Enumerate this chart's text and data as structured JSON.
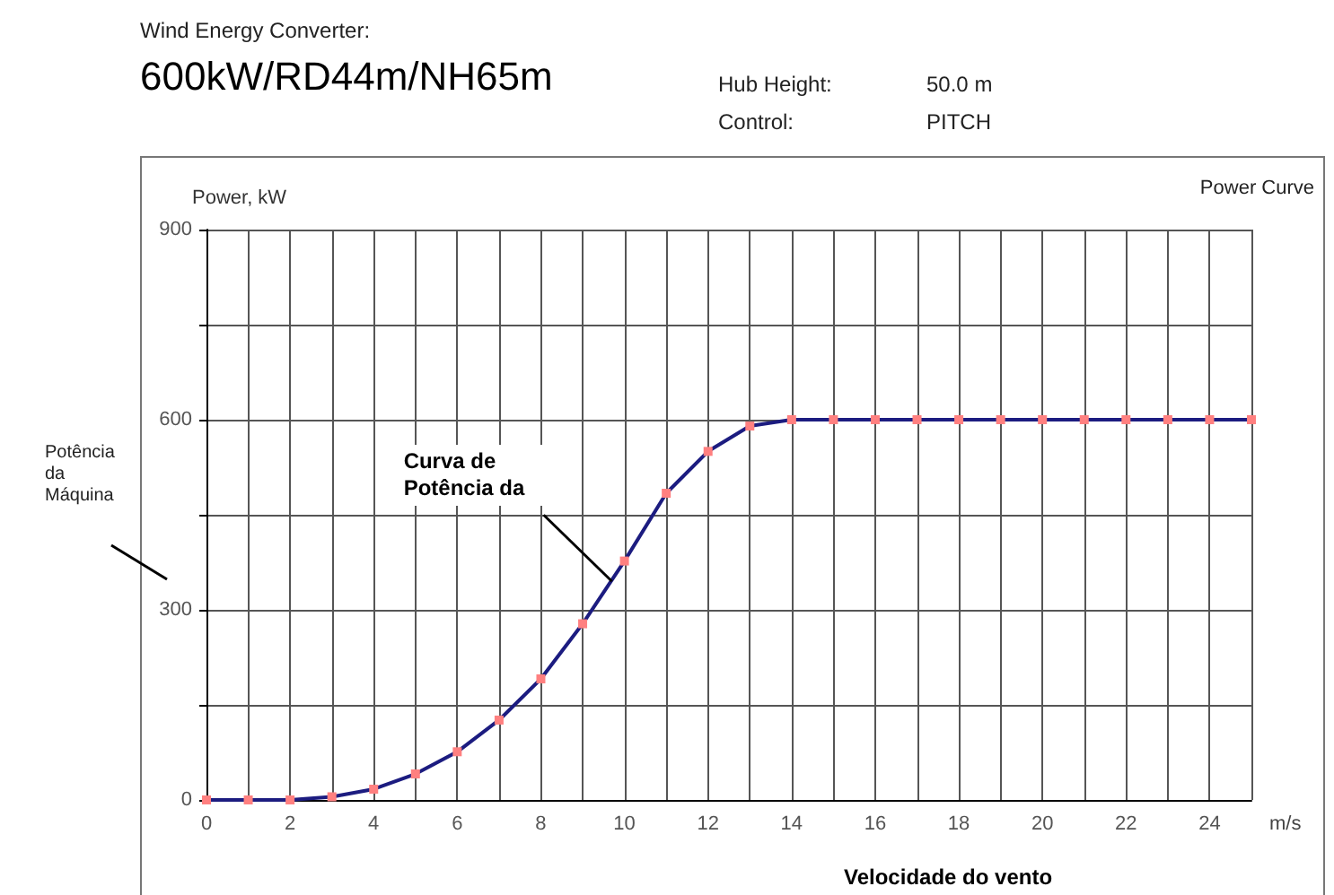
{
  "chart_data": {
    "type": "line",
    "title": "600kW/RD44m/NH65m",
    "subtitle": "Wind Energy Converter:",
    "xlabel": "m/s",
    "ylabel": "Power, kW",
    "annotations": [
      "Hub Height:",
      "50.0 m",
      "Control:",
      "PITCH",
      "Power Curve",
      "Potência da Máquina",
      "Velocidade do vento",
      {
        "text": "Curva de Potência da",
        "x": 9.7,
        "y": 345
      }
    ],
    "x": [
      0,
      1,
      2,
      3,
      4,
      5,
      6,
      7,
      8,
      9,
      10,
      11,
      12,
      13,
      14,
      15,
      16,
      17,
      18,
      19,
      20,
      21,
      22,
      23,
      24,
      25
    ],
    "series": [
      {
        "color": "#1c1c80",
        "values": [
          0,
          0,
          0,
          5,
          17,
          41,
          76,
          126,
          191,
          278,
          377,
          484,
          550,
          590,
          600,
          600,
          600,
          600,
          600,
          600,
          600,
          600,
          600,
          600,
          600,
          600
        ]
      }
    ],
    "xlim": [
      0,
      25
    ],
    "xticks": [
      0,
      {
        "value": 1,
        "label": null
      },
      2,
      {
        "value": 3,
        "label": null
      },
      4,
      {
        "value": 5,
        "label": null
      },
      6,
      {
        "value": 7,
        "label": null
      },
      8,
      {
        "value": 9,
        "label": null
      },
      10,
      {
        "value": 11,
        "label": null
      },
      12,
      {
        "value": 13,
        "label": null
      },
      14,
      {
        "value": 15,
        "label": null
      },
      16,
      {
        "value": 17,
        "label": null
      },
      18,
      {
        "value": 19,
        "label": null
      },
      20,
      {
        "value": 21,
        "label": null
      },
      22,
      {
        "value": 23,
        "label": null
      },
      24,
      {
        "value": 25,
        "label": null
      }
    ],
    "ylim": [
      0,
      900
    ],
    "yticks": [
      0,
      {
        "value": 150,
        "label": null
      },
      300,
      {
        "value": 450,
        "label": null
      },
      600,
      {
        "value": 750,
        "label": null
      },
      900
    ],
    "grid": true,
    "marker": "square",
    "line_style": "solid"
  }
}
